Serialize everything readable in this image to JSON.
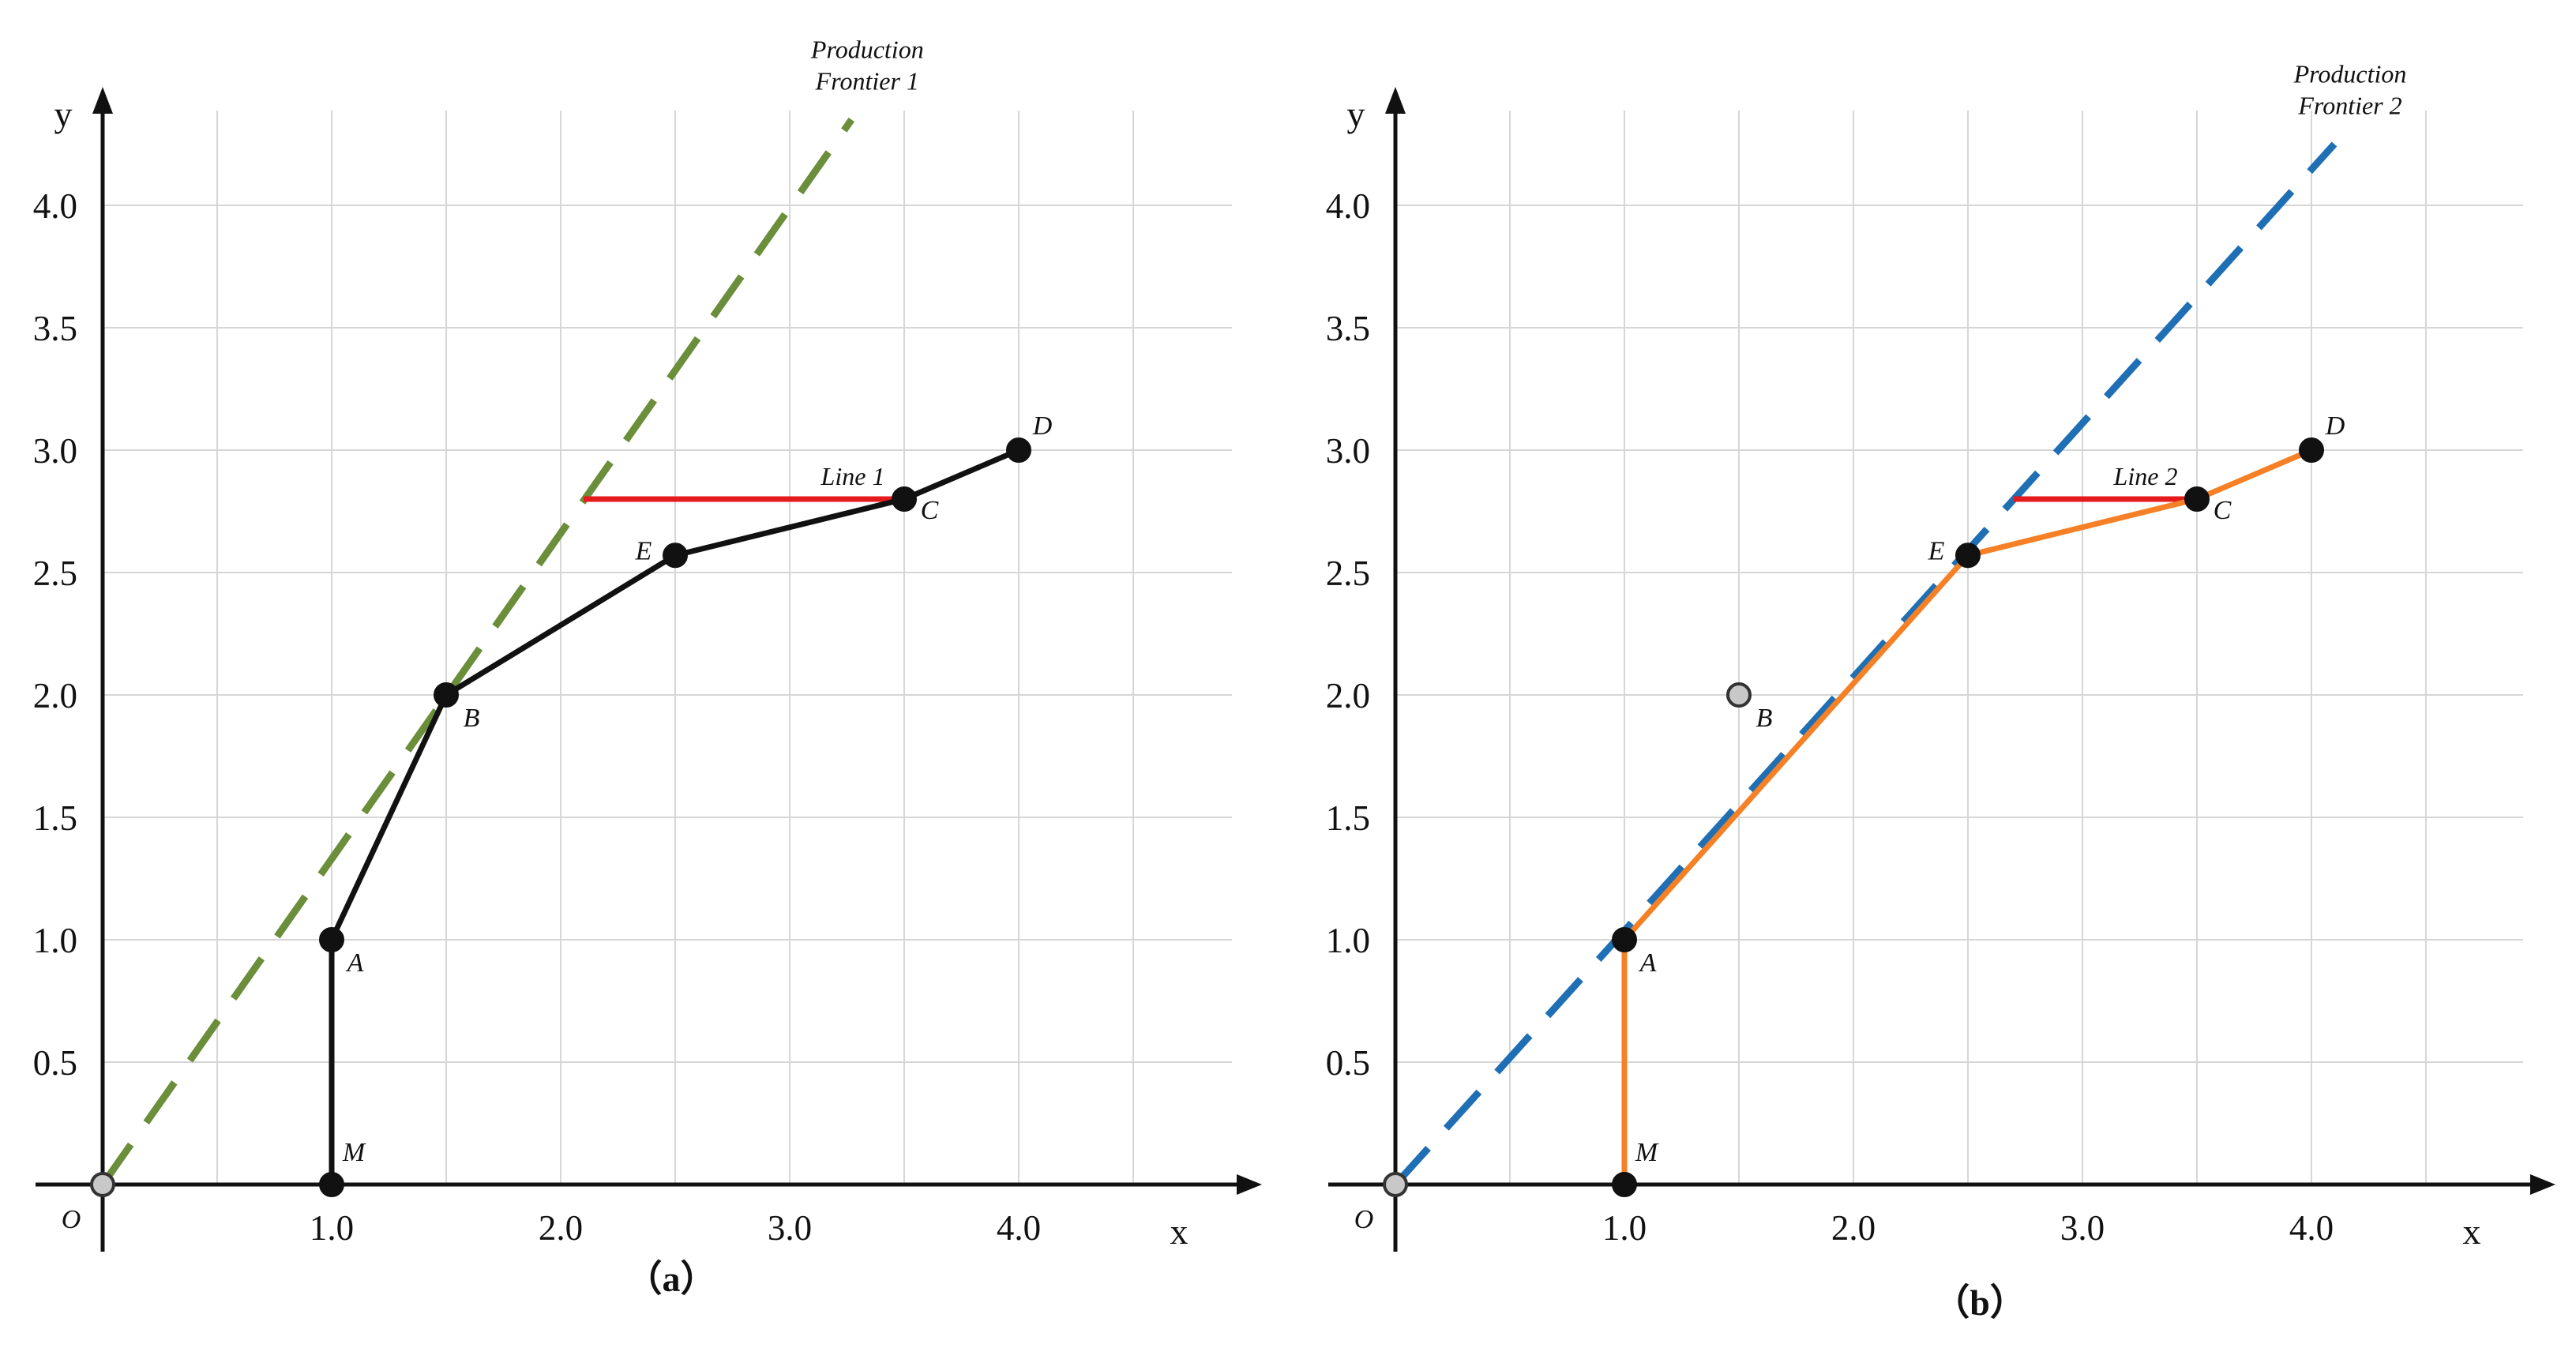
{
  "panels": [
    {
      "id": "a",
      "caption": "（a）",
      "x_axis_label": "x",
      "y_axis_label": "y",
      "origin_label": "O",
      "x_ticks": [
        "1.0",
        "2.0",
        "3.0",
        "4.0"
      ],
      "y_ticks": [
        "0.5",
        "1.0",
        "1.5",
        "2.0",
        "2.5",
        "3.0",
        "3.5",
        "4.0"
      ],
      "frontier_label": [
        "Production",
        "Frontier 1"
      ],
      "frontier_color": "#6a8e3a",
      "frontier_end": [
        3.27,
        4.35
      ],
      "path_color": "#111111",
      "path": [
        [
          1.0,
          0
        ],
        [
          1.0,
          1.0
        ],
        [
          1.5,
          2.0
        ],
        [
          2.5,
          2.57
        ],
        [
          3.5,
          2.8
        ],
        [
          4.0,
          3.0
        ]
      ],
      "red_line_label": "Line 1",
      "red_line": [
        [
          2.1,
          2.8
        ],
        [
          3.5,
          2.8
        ]
      ],
      "red_color": "#e41a1c",
      "points": [
        {
          "name": "O",
          "x": 0,
          "y": 0,
          "style": "gray"
        },
        {
          "name": "M",
          "x": 1.0,
          "y": 0,
          "label": "M",
          "style": "black"
        },
        {
          "name": "A",
          "x": 1.0,
          "y": 1.0,
          "label": "A",
          "style": "black"
        },
        {
          "name": "B",
          "x": 1.5,
          "y": 2.0,
          "label": "B",
          "style": "black"
        },
        {
          "name": "E",
          "x": 2.5,
          "y": 2.57,
          "label": "E",
          "style": "black"
        },
        {
          "name": "C",
          "x": 3.5,
          "y": 2.8,
          "label": "C",
          "style": "black"
        },
        {
          "name": "D",
          "x": 4.0,
          "y": 3.0,
          "label": "D",
          "style": "black"
        }
      ]
    },
    {
      "id": "b",
      "caption": "（b）",
      "x_axis_label": "x",
      "y_axis_label": "y",
      "origin_label": "O",
      "x_ticks": [
        "1.0",
        "2.0",
        "3.0",
        "4.0"
      ],
      "y_ticks": [
        "0.5",
        "1.0",
        "1.5",
        "2.0",
        "2.5",
        "3.0",
        "3.5",
        "4.0"
      ],
      "frontier_label": [
        "Production",
        "Frontier 2"
      ],
      "frontier_color": "#1f6fb5",
      "frontier_end": [
        4.1,
        4.25
      ],
      "path_color": "#f58025",
      "path": [
        [
          1.0,
          0
        ],
        [
          1.0,
          1.0
        ],
        [
          2.5,
          2.57
        ],
        [
          3.5,
          2.8
        ],
        [
          4.0,
          3.0
        ]
      ],
      "red_line_label": "Line 2",
      "red_line": [
        [
          2.7,
          2.8
        ],
        [
          3.5,
          2.8
        ]
      ],
      "red_color": "#e41a1c",
      "points": [
        {
          "name": "O",
          "x": 0,
          "y": 0,
          "style": "gray"
        },
        {
          "name": "M",
          "x": 1.0,
          "y": 0,
          "label": "M",
          "style": "black"
        },
        {
          "name": "A",
          "x": 1.0,
          "y": 1.0,
          "label": "A",
          "style": "black"
        },
        {
          "name": "B",
          "x": 1.5,
          "y": 2.0,
          "label": "B",
          "style": "gray"
        },
        {
          "name": "E",
          "x": 2.5,
          "y": 2.57,
          "label": "E",
          "style": "black"
        },
        {
          "name": "C",
          "x": 3.5,
          "y": 2.8,
          "label": "C",
          "style": "black"
        },
        {
          "name": "D",
          "x": 4.0,
          "y": 3.0,
          "label": "D",
          "style": "black"
        }
      ]
    }
  ]
}
